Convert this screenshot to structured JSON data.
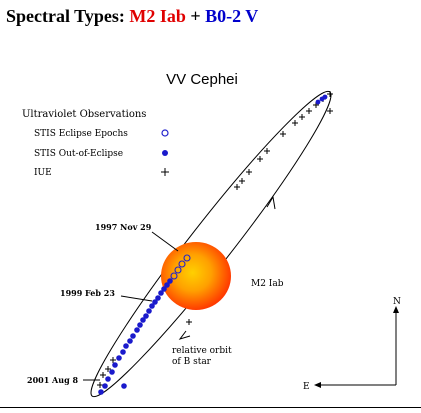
{
  "header": {
    "label": "Spectral Types:",
    "primary_type": "M2 Iab",
    "plus": "+",
    "secondary_type": "B0-2 V",
    "primary_color": "#e00000",
    "secondary_color": "#0000cc"
  },
  "diagram": {
    "title": "VV Cephei",
    "legend": {
      "heading": "Ultraviolet Observations",
      "items": [
        {
          "label": "STIS Eclipse Epochs",
          "marker": "open-circle",
          "color": "#2222cc"
        },
        {
          "label": "STIS Out-of-Eclipse",
          "marker": "filled-circle",
          "color": "#1a1acc"
        },
        {
          "label": "IUE",
          "marker": "plus",
          "color": "#000000"
        }
      ]
    },
    "star_label": "M2 Iab",
    "orbit_label_line1": "relative orbit",
    "orbit_label_line2": "of B star",
    "dates": [
      {
        "label": "1997 Nov 29"
      },
      {
        "label": "1999 Feb 23"
      },
      {
        "label": "2001 Aug 8"
      }
    ],
    "compass": {
      "north": "N",
      "east": "E"
    },
    "star_colors": {
      "center": "#ffcc00",
      "mid": "#ff9900",
      "edge": "#ff2000"
    }
  }
}
